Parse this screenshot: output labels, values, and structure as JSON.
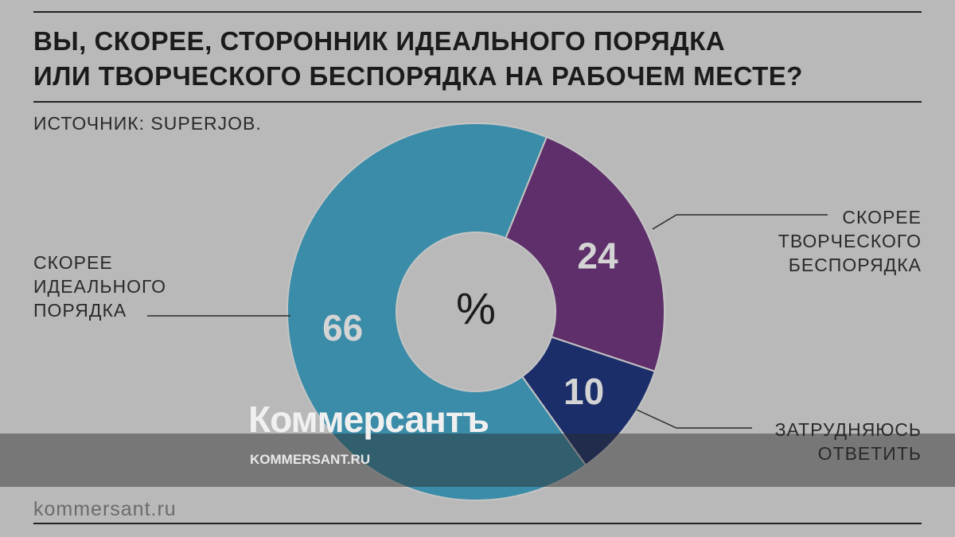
{
  "chart_data": {
    "type": "donut",
    "title": "ВЫ, СКОРЕЕ, СТОРОННИК ИДЕАЛЬНОГО ПОРЯДКА\nИЛИ ТВОРЧЕСКОГО БЕСПОРЯДКА НА РАБОЧЕМ МЕСТЕ?",
    "subtitle": "ИСТОЧНИК: SUPERJOB.",
    "center_label": "%",
    "categories": [
      "СКОРЕЕ\nТВОРЧЕСКОГО\nБЕСПОРЯДКА",
      "ЗАТРУДНЯЮСЬ\nОТВЕТИТЬ",
      "СКОРЕЕ\nИДЕАЛЬНОГО\nПОРЯДКА"
    ],
    "values": [
      24,
      10,
      66
    ],
    "colors": [
      "#5e2f6a",
      "#1c2e6a",
      "#3a8ca8"
    ]
  },
  "watermark": {
    "logo": "Коммерсантъ",
    "url": "KOMMERSANT.RU"
  },
  "footer": "kommersant.ru"
}
